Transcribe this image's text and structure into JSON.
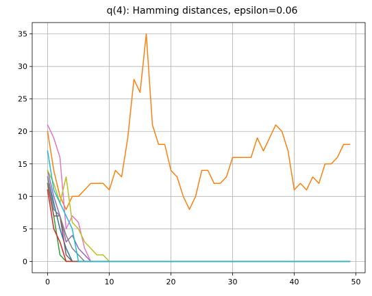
{
  "chart_data": {
    "type": "line",
    "title": "q(4): Hamming distances, epsilon=0.06",
    "xlabel": "",
    "ylabel": "",
    "xlim": [
      -2.5,
      51.5
    ],
    "ylim": [
      -1.75,
      36.75
    ],
    "xticks": [
      0,
      10,
      20,
      30,
      40,
      50
    ],
    "yticks": [
      0,
      5,
      10,
      15,
      20,
      25,
      30,
      35
    ],
    "grid": true,
    "legend": false,
    "series": [
      {
        "color": "#1f77b4",
        "x": [
          0,
          1,
          2,
          3,
          4,
          5,
          6,
          7,
          8,
          9,
          10,
          11,
          12,
          13,
          14,
          15,
          16,
          17,
          18,
          19,
          20,
          21,
          22,
          23,
          24,
          25,
          26,
          27,
          28,
          29,
          30,
          31,
          32,
          33,
          34,
          35,
          36,
          37,
          38,
          39,
          40,
          41,
          42,
          43,
          44,
          45,
          46,
          47,
          48,
          49
        ],
        "y": [
          13,
          9,
          5,
          2,
          0,
          0,
          0,
          0,
          0,
          0,
          0,
          0,
          0,
          0,
          0,
          0,
          0,
          0,
          0,
          0,
          0,
          0,
          0,
          0,
          0,
          0,
          0,
          0,
          0,
          0,
          0,
          0,
          0,
          0,
          0,
          0,
          0,
          0,
          0,
          0,
          0,
          0,
          0,
          0,
          0,
          0,
          0,
          0,
          0,
          0
        ]
      },
      {
        "color": "#ff7f0e",
        "x": [
          0,
          1,
          2,
          3,
          4,
          5,
          6,
          7,
          8,
          9,
          10,
          11,
          12,
          13,
          14,
          15,
          16,
          17,
          18,
          19,
          20,
          21,
          22,
          23,
          24,
          25,
          26,
          27,
          28,
          29,
          30,
          31,
          32,
          33,
          34,
          35,
          36,
          37,
          38,
          39,
          40,
          41,
          42,
          43,
          44,
          45,
          46,
          47,
          48,
          49
        ],
        "y": [
          20,
          14,
          10,
          8,
          10,
          10,
          11,
          12,
          12,
          12,
          11,
          14,
          13,
          19,
          28,
          26,
          35,
          21,
          18,
          18,
          14,
          13,
          10,
          8,
          10,
          14,
          14,
          12,
          12,
          13,
          16,
          16,
          16,
          16,
          19,
          17,
          19,
          21,
          20,
          17,
          11,
          12,
          11,
          13,
          12,
          15,
          15,
          16,
          18,
          18
        ]
      },
      {
        "color": "#2ca02c",
        "x": [
          0,
          1,
          2,
          3,
          4,
          5,
          6,
          7,
          8,
          9,
          10,
          11,
          12,
          13,
          14,
          15,
          16,
          17,
          18,
          19,
          20,
          21,
          22,
          23,
          24,
          25,
          26,
          27,
          28,
          29,
          30,
          31,
          32,
          33,
          34,
          35,
          36,
          37,
          38,
          39,
          40,
          41,
          42,
          43,
          44,
          45,
          46,
          47,
          48,
          49
        ],
        "y": [
          12,
          7,
          1,
          0,
          0,
          0,
          0,
          0,
          0,
          0,
          0,
          0,
          0,
          0,
          0,
          0,
          0,
          0,
          0,
          0,
          0,
          0,
          0,
          0,
          0,
          0,
          0,
          0,
          0,
          0,
          0,
          0,
          0,
          0,
          0,
          0,
          0,
          0,
          0,
          0,
          0,
          0,
          0,
          0,
          0,
          0,
          0,
          0,
          0,
          0
        ]
      },
      {
        "color": "#d62728",
        "x": [
          0,
          1,
          2,
          3,
          4,
          5,
          6,
          7,
          8,
          9,
          10,
          11,
          12,
          13,
          14,
          15,
          16,
          17,
          18,
          19,
          20,
          21,
          22,
          23,
          24,
          25,
          26,
          27,
          28,
          29,
          30,
          31,
          32,
          33,
          34,
          35,
          36,
          37,
          38,
          39,
          40,
          41,
          42,
          43,
          44,
          45,
          46,
          47,
          48,
          49
        ],
        "y": [
          11,
          5,
          3,
          0,
          0,
          0,
          0,
          0,
          0,
          0,
          0,
          0,
          0,
          0,
          0,
          0,
          0,
          0,
          0,
          0,
          0,
          0,
          0,
          0,
          0,
          0,
          0,
          0,
          0,
          0,
          0,
          0,
          0,
          0,
          0,
          0,
          0,
          0,
          0,
          0,
          0,
          0,
          0,
          0,
          0,
          0,
          0,
          0,
          0,
          0
        ]
      },
      {
        "color": "#9467bd",
        "x": [
          0,
          1,
          2,
          3,
          4,
          5,
          6,
          7,
          8,
          9,
          10,
          11,
          12,
          13,
          14,
          15,
          16,
          17,
          18,
          19,
          20,
          21,
          22,
          23,
          24,
          25,
          26,
          27,
          28,
          29,
          30,
          31,
          32,
          33,
          34,
          35,
          36,
          37,
          38,
          39,
          40,
          41,
          42,
          43,
          44,
          45,
          46,
          47,
          48,
          49
        ],
        "y": [
          14,
          10,
          7,
          3,
          4,
          2,
          1,
          0,
          0,
          0,
          0,
          0,
          0,
          0,
          0,
          0,
          0,
          0,
          0,
          0,
          0,
          0,
          0,
          0,
          0,
          0,
          0,
          0,
          0,
          0,
          0,
          0,
          0,
          0,
          0,
          0,
          0,
          0,
          0,
          0,
          0,
          0,
          0,
          0,
          0,
          0,
          0,
          0,
          0,
          0
        ]
      },
      {
        "color": "#8c564b",
        "x": [
          0,
          1,
          2,
          3,
          4,
          5,
          6,
          7,
          8,
          9,
          10,
          11,
          12,
          13,
          14,
          15,
          16,
          17,
          18,
          19,
          20,
          21,
          22,
          23,
          24,
          25,
          26,
          27,
          28,
          29,
          30,
          31,
          32,
          33,
          34,
          35,
          36,
          37,
          38,
          39,
          40,
          41,
          42,
          43,
          44,
          45,
          46,
          47,
          48,
          49
        ],
        "y": [
          12,
          7,
          7,
          1,
          0,
          0,
          0,
          0,
          0,
          0,
          0,
          0,
          0,
          0,
          0,
          0,
          0,
          0,
          0,
          0,
          0,
          0,
          0,
          0,
          0,
          0,
          0,
          0,
          0,
          0,
          0,
          0,
          0,
          0,
          0,
          0,
          0,
          0,
          0,
          0,
          0,
          0,
          0,
          0,
          0,
          0,
          0,
          0,
          0,
          0
        ]
      },
      {
        "color": "#e377c2",
        "x": [
          0,
          1,
          2,
          3,
          4,
          5,
          6,
          7,
          8,
          9,
          10,
          11,
          12,
          13,
          14,
          15,
          16,
          17,
          18,
          19,
          20,
          21,
          22,
          23,
          24,
          25,
          26,
          27,
          28,
          29,
          30,
          31,
          32,
          33,
          34,
          35,
          36,
          37,
          38,
          39,
          40,
          41,
          42,
          43,
          44,
          45,
          46,
          47,
          48,
          49
        ],
        "y": [
          21,
          19,
          16,
          5,
          7,
          6,
          2,
          0,
          0,
          0,
          0,
          0,
          0,
          0,
          0,
          0,
          0,
          0,
          0,
          0,
          0,
          0,
          0,
          0,
          0,
          0,
          0,
          0,
          0,
          0,
          0,
          0,
          0,
          0,
          0,
          0,
          0,
          0,
          0,
          0,
          0,
          0,
          0,
          0,
          0,
          0,
          0,
          0,
          0,
          0
        ]
      },
      {
        "color": "#7f7f7f",
        "x": [
          0,
          1,
          2,
          3,
          4,
          5,
          6,
          7,
          8,
          9,
          10,
          11,
          12,
          13,
          14,
          15,
          16,
          17,
          18,
          19,
          20,
          21,
          22,
          23,
          24,
          25,
          26,
          27,
          28,
          29,
          30,
          31,
          32,
          33,
          34,
          35,
          36,
          37,
          38,
          39,
          40,
          41,
          42,
          43,
          44,
          45,
          46,
          47,
          48,
          49
        ],
        "y": [
          13,
          8,
          7,
          4,
          2,
          1,
          0,
          0,
          0,
          0,
          0,
          0,
          0,
          0,
          0,
          0,
          0,
          0,
          0,
          0,
          0,
          0,
          0,
          0,
          0,
          0,
          0,
          0,
          0,
          0,
          0,
          0,
          0,
          0,
          0,
          0,
          0,
          0,
          0,
          0,
          0,
          0,
          0,
          0,
          0,
          0,
          0,
          0,
          0,
          0
        ]
      },
      {
        "color": "#bcbd22",
        "x": [
          0,
          1,
          2,
          3,
          4,
          5,
          6,
          7,
          8,
          9,
          10,
          11,
          12,
          13,
          14,
          15,
          16,
          17,
          18,
          19,
          20,
          21,
          22,
          23,
          24,
          25,
          26,
          27,
          28,
          29,
          30,
          31,
          32,
          33,
          34,
          35,
          36,
          37,
          38,
          39,
          40,
          41,
          42,
          43,
          44,
          45,
          46,
          47,
          48,
          49
        ],
        "y": [
          14,
          12,
          9,
          13,
          6,
          5,
          3,
          2,
          1,
          1,
          0,
          0,
          0,
          0,
          0,
          0,
          0,
          0,
          0,
          0,
          0,
          0,
          0,
          0,
          0,
          0,
          0,
          0,
          0,
          0,
          0,
          0,
          0,
          0,
          0,
          0,
          0,
          0,
          0,
          0,
          0,
          0,
          0,
          0,
          0,
          0,
          0,
          0,
          0,
          0
        ]
      },
      {
        "color": "#17becf",
        "x": [
          0,
          1,
          2,
          3,
          4,
          5,
          6,
          7,
          8,
          9,
          10,
          11,
          12,
          13,
          14,
          15,
          16,
          17,
          18,
          19,
          20,
          21,
          22,
          23,
          24,
          25,
          26,
          27,
          28,
          29,
          30,
          31,
          32,
          33,
          34,
          35,
          36,
          37,
          38,
          39,
          40,
          41,
          42,
          43,
          44,
          45,
          46,
          47,
          48,
          49
        ],
        "y": [
          17,
          11,
          9,
          7,
          5,
          0,
          0,
          0,
          0,
          0,
          0,
          0,
          0,
          0,
          0,
          0,
          0,
          0,
          0,
          0,
          0,
          0,
          0,
          0,
          0,
          0,
          0,
          0,
          0,
          0,
          0,
          0,
          0,
          0,
          0,
          0,
          0,
          0,
          0,
          0,
          0,
          0,
          0,
          0,
          0,
          0,
          0,
          0,
          0,
          0
        ]
      }
    ]
  }
}
